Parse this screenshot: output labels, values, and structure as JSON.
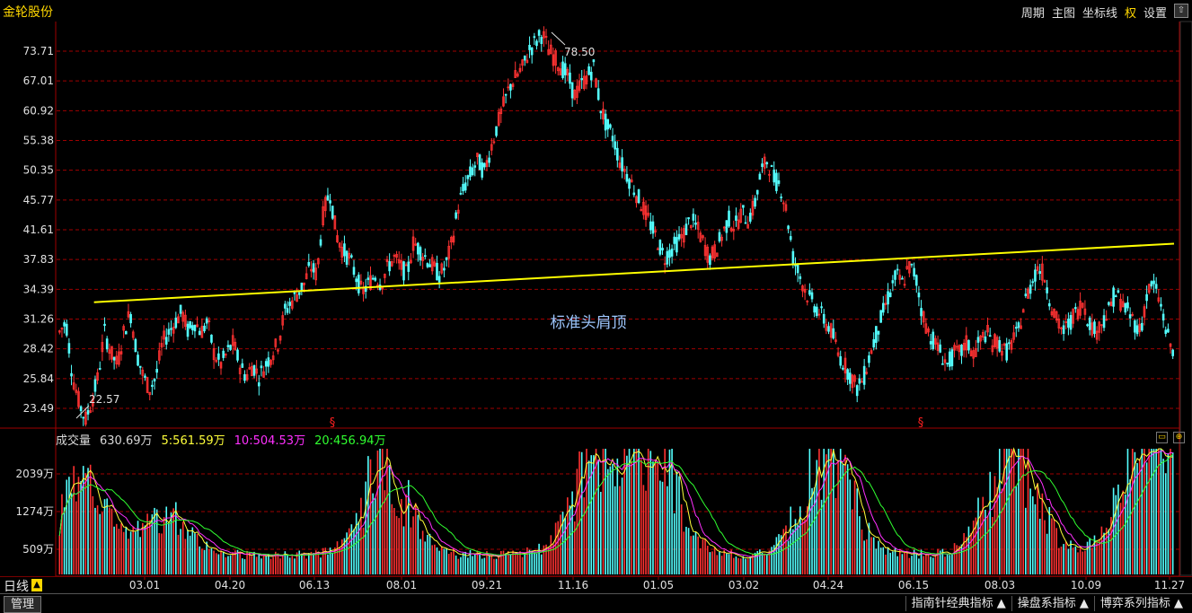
{
  "header": {
    "stock_name": "金轮股份",
    "toolbar": [
      "周期",
      "主图",
      "坐标线",
      "权",
      "设置"
    ],
    "corner_icon": "up-arrow-icon"
  },
  "main_chart": {
    "annotation": "标准头肩顶",
    "high_label": "78.50",
    "low_label": "22.57",
    "marker_symbol": "§"
  },
  "chart_data": [
    {
      "type": "candlestick",
      "yticks": [
        "73.71",
        "67.01",
        "60.92",
        "55.38",
        "50.35",
        "45.77",
        "41.61",
        "37.83",
        "34.39",
        "31.26",
        "28.42",
        "25.84",
        "23.49"
      ],
      "ylim": [
        22.5,
        78.5
      ],
      "scale": "log",
      "high": 78.5,
      "low": 22.57,
      "neckline": [
        [
          15,
          33.0
        ],
        [
          470,
          39.8
        ]
      ],
      "close_path": [
        30,
        31,
        26,
        24,
        22.6,
        24,
        26,
        30,
        28,
        27,
        30,
        32,
        28,
        26,
        25,
        26,
        29,
        30,
        31,
        32,
        30,
        31,
        30,
        31,
        28,
        27,
        28,
        29,
        27,
        26,
        27,
        26,
        27,
        28,
        29,
        32,
        33,
        34,
        35,
        37,
        36,
        44,
        47,
        41,
        39,
        38,
        36,
        34,
        35,
        36,
        35,
        37,
        38,
        37,
        36,
        40,
        39,
        38,
        37,
        36,
        37,
        40,
        45,
        48,
        50,
        52,
        50,
        54,
        58,
        62,
        66,
        68,
        70,
        74,
        76,
        78,
        74,
        72,
        70,
        68,
        64,
        66,
        68,
        70,
        62,
        58,
        56,
        52,
        50,
        48,
        46,
        44,
        42,
        40,
        38,
        39,
        40,
        41,
        43,
        42,
        40,
        38,
        39,
        41,
        43,
        42,
        44,
        43,
        45,
        50,
        52,
        49,
        48,
        44,
        38,
        36,
        34,
        33,
        32,
        31,
        30,
        28,
        27,
        26,
        25,
        26,
        28,
        30,
        32,
        34,
        36,
        35,
        37,
        36,
        32,
        30,
        29,
        28,
        27,
        28,
        28,
        29,
        28,
        29,
        30,
        29,
        29,
        28,
        29,
        30,
        33,
        35,
        37,
        36,
        33,
        31,
        30,
        31,
        32,
        33,
        31,
        30,
        31,
        32,
        34,
        33,
        32,
        31,
        30,
        34,
        35,
        33,
        30,
        28
      ],
      "xticks": [
        "03.01",
        "04.20",
        "06.13",
        "08.01",
        "09.21",
        "11.16",
        "01.05",
        "03.02",
        "04.24",
        "06.15",
        "08.03",
        "10.09",
        "11.27"
      ]
    },
    {
      "type": "bar",
      "title": "成交量",
      "yticks": [
        "2039万",
        "1274万",
        "509万"
      ],
      "legend": [
        "630.69万",
        "5:561.59万",
        "10:504.53万",
        "20:456.94万"
      ]
    }
  ],
  "period": {
    "label": "日线",
    "warn_icon": "▲"
  },
  "bottom": {
    "manage": "管理",
    "tabs": [
      "指南针经典指标 ▲",
      "操盘系指标 ▲",
      "博弈系列指标 ▲"
    ]
  },
  "colors": {
    "up": "#ff3232",
    "down": "#54ffff",
    "grid": "#a00000",
    "neckline": "#ffff00",
    "ma5": "#ffff3a",
    "ma10": "#ff30ff",
    "ma20": "#30ff30"
  }
}
